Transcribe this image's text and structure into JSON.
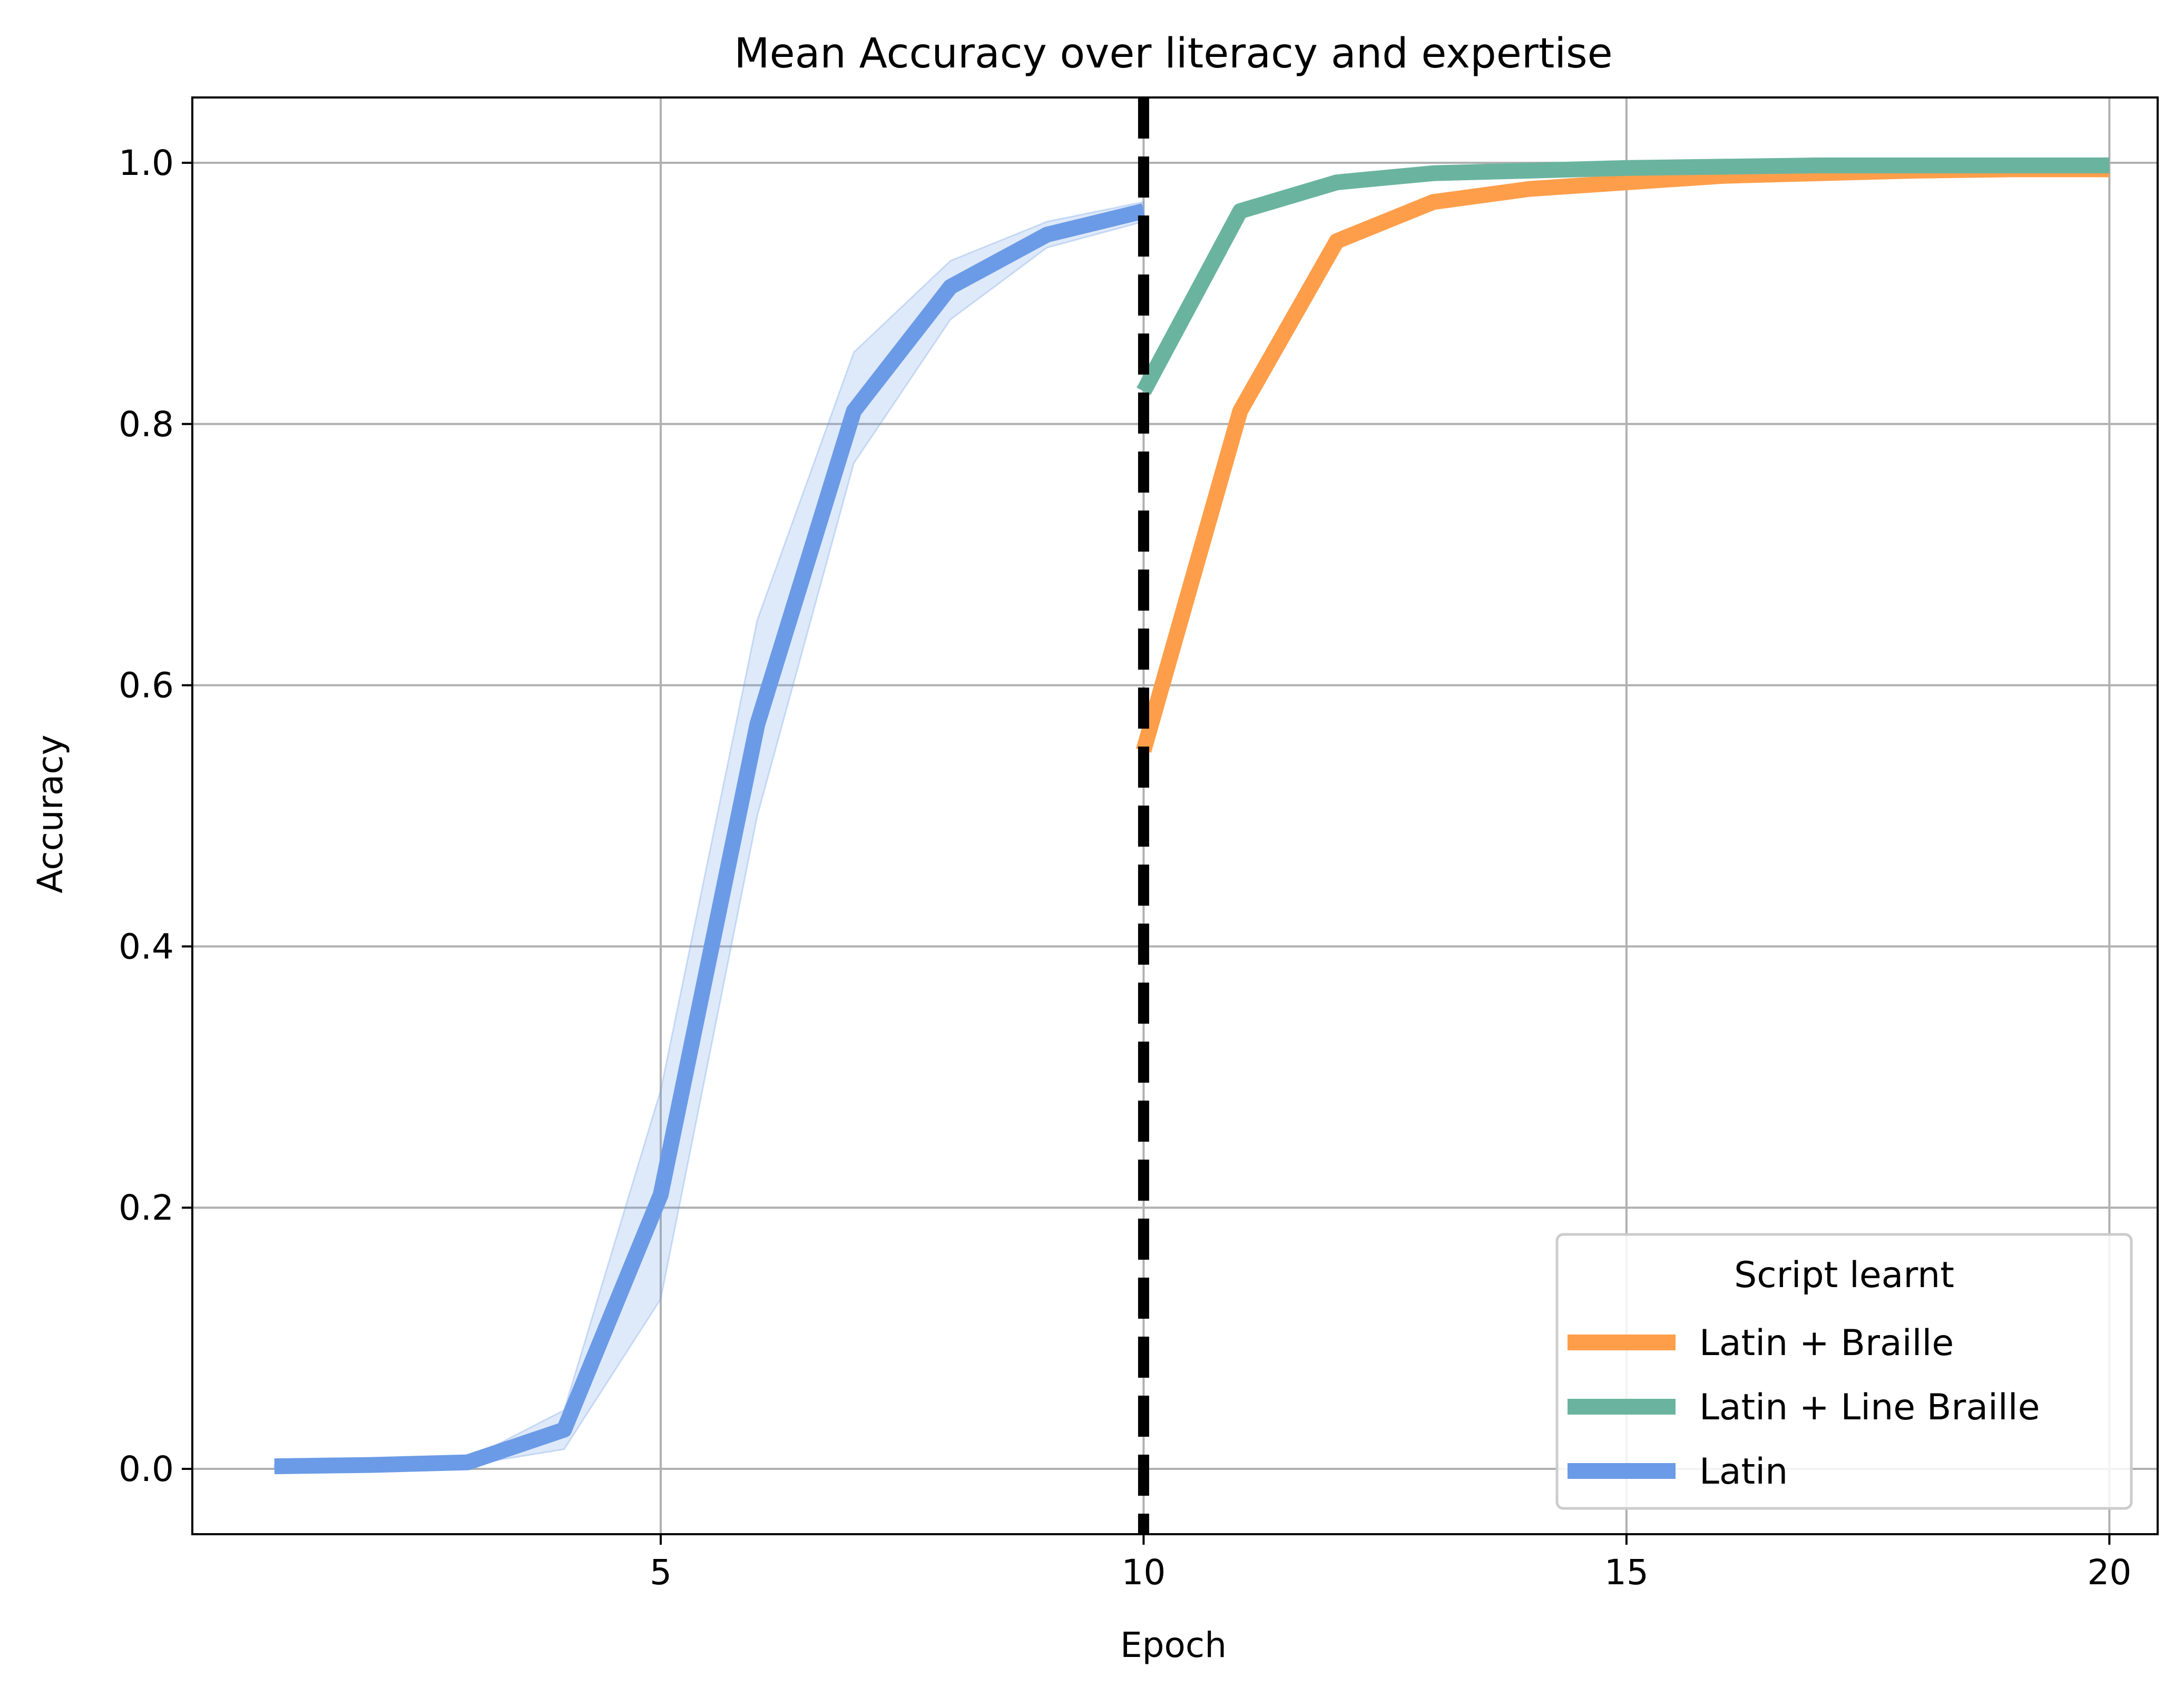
{
  "chart_data": {
    "type": "line",
    "title": "Mean Accuracy over literacy and expertise",
    "xlabel": "Epoch",
    "ylabel": "Accuracy",
    "xlim": [
      0.15,
      20.5
    ],
    "ylim": [
      -0.05,
      1.05
    ],
    "xticks": [
      5,
      10,
      15,
      20
    ],
    "yticks": [
      0.0,
      0.2,
      0.4,
      0.6,
      0.8,
      1.0
    ],
    "xtick_labels": [
      "5",
      "10",
      "15",
      "20"
    ],
    "ytick_labels": [
      "0.0",
      "0.2",
      "0.4",
      "0.6",
      "0.8",
      "1.0"
    ],
    "grid": true,
    "vline": {
      "x": 10,
      "style": "dashed",
      "color": "#000000"
    },
    "legend": {
      "title": "Script learnt",
      "placement": "lower right"
    },
    "series": [
      {
        "name": "Latin + Braille",
        "color": "#ff9e4a",
        "x": [
          10,
          11,
          12,
          13,
          14,
          15,
          16,
          17,
          18,
          19,
          20
        ],
        "y": [
          0.55,
          0.81,
          0.94,
          0.97,
          0.98,
          0.985,
          0.99,
          0.992,
          0.994,
          0.995,
          0.995
        ]
      },
      {
        "name": "Latin + Line Braille",
        "color": "#6ab49f",
        "x": [
          10,
          11,
          12,
          13,
          14,
          15,
          16,
          17,
          18,
          19,
          20
        ],
        "y": [
          0.825,
          0.963,
          0.985,
          0.992,
          0.994,
          0.996,
          0.997,
          0.998,
          0.998,
          0.998,
          0.998
        ]
      },
      {
        "name": "Latin",
        "color": "#6b9be6",
        "x": [
          1,
          2,
          3,
          4,
          5,
          6,
          7,
          8,
          9,
          10
        ],
        "y": [
          0.002,
          0.003,
          0.005,
          0.03,
          0.21,
          0.57,
          0.81,
          0.905,
          0.945,
          0.963
        ],
        "band_low": [
          0.001,
          0.002,
          0.003,
          0.015,
          0.13,
          0.5,
          0.77,
          0.88,
          0.935,
          0.955
        ],
        "band_high": [
          0.003,
          0.004,
          0.007,
          0.045,
          0.29,
          0.65,
          0.855,
          0.925,
          0.955,
          0.97
        ]
      }
    ]
  }
}
